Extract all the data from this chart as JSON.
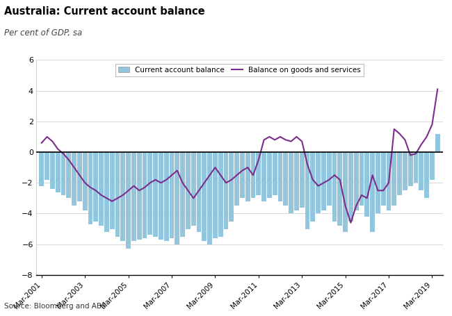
{
  "title": "Australia: Current account balance",
  "subtitle": "Per cent of GDP, sa",
  "source": "Source: Bloomberg and ABS",
  "bar_color": "#92C5DE",
  "line_color": "#7B2D8B",
  "ylim": [
    -8,
    6
  ],
  "yticks": [
    -8,
    -6,
    -4,
    -2,
    0,
    2,
    4,
    6
  ],
  "xtick_labels": [
    "Mar-2001",
    "Mar-2003",
    "Mar-2005",
    "Mar-2007",
    "Mar-2009",
    "Mar-2011",
    "Mar-2013",
    "Mar-2015",
    "Mar-2017",
    "Mar-2019"
  ],
  "legend_bar_label": "Current account balance",
  "legend_line_label": "Balance on goods and services",
  "cab_values": [
    -2.2,
    -1.8,
    -2.4,
    -2.6,
    -2.8,
    -3.0,
    -3.5,
    -3.2,
    -3.8,
    -4.7,
    -4.5,
    -4.8,
    -5.2,
    -5.0,
    -5.5,
    -5.8,
    -6.3,
    -5.8,
    -5.7,
    -5.6,
    -5.4,
    -5.5,
    -5.7,
    -5.8,
    -5.6,
    -6.0,
    -5.5,
    -5.0,
    -4.8,
    -5.2,
    -5.8,
    -6.0,
    -5.6,
    -5.5,
    -5.0,
    -4.5,
    -3.5,
    -3.0,
    -3.2,
    -3.0,
    -2.8,
    -3.2,
    -3.0,
    -2.8,
    -3.2,
    -3.5,
    -4.0,
    -3.8,
    -3.6,
    -5.0,
    -4.5,
    -4.0,
    -3.8,
    -3.5,
    -4.5,
    -4.8,
    -5.2,
    -4.5,
    -3.8,
    -3.5,
    -4.2,
    -5.2,
    -4.0,
    -3.5,
    -3.8,
    -3.5,
    -2.8,
    -2.5,
    -2.2,
    -2.0,
    -2.5,
    -3.0,
    -1.8,
    1.2
  ],
  "bgs_values": [
    0.6,
    1.0,
    0.7,
    0.2,
    -0.1,
    -0.5,
    -1.0,
    -1.5,
    -2.0,
    -2.3,
    -2.5,
    -2.8,
    -3.0,
    -3.2,
    -3.0,
    -2.8,
    -2.5,
    -2.2,
    -2.5,
    -2.3,
    -2.0,
    -1.8,
    -2.0,
    -1.8,
    -1.5,
    -1.2,
    -2.0,
    -2.5,
    -3.0,
    -2.5,
    -2.0,
    -1.5,
    -1.0,
    -1.5,
    -2.0,
    -1.8,
    -1.5,
    -1.2,
    -1.0,
    -1.5,
    -0.5,
    0.8,
    1.0,
    0.8,
    1.0,
    0.8,
    0.7,
    1.0,
    0.7,
    -0.8,
    -1.8,
    -2.2,
    -2.0,
    -1.8,
    -1.5,
    -1.8,
    -3.5,
    -4.6,
    -3.5,
    -2.8,
    -3.0,
    -1.5,
    -2.5,
    -2.5,
    -2.0,
    1.5,
    1.2,
    0.8,
    -0.2,
    -0.1,
    0.5,
    1.0,
    1.8,
    4.1
  ]
}
